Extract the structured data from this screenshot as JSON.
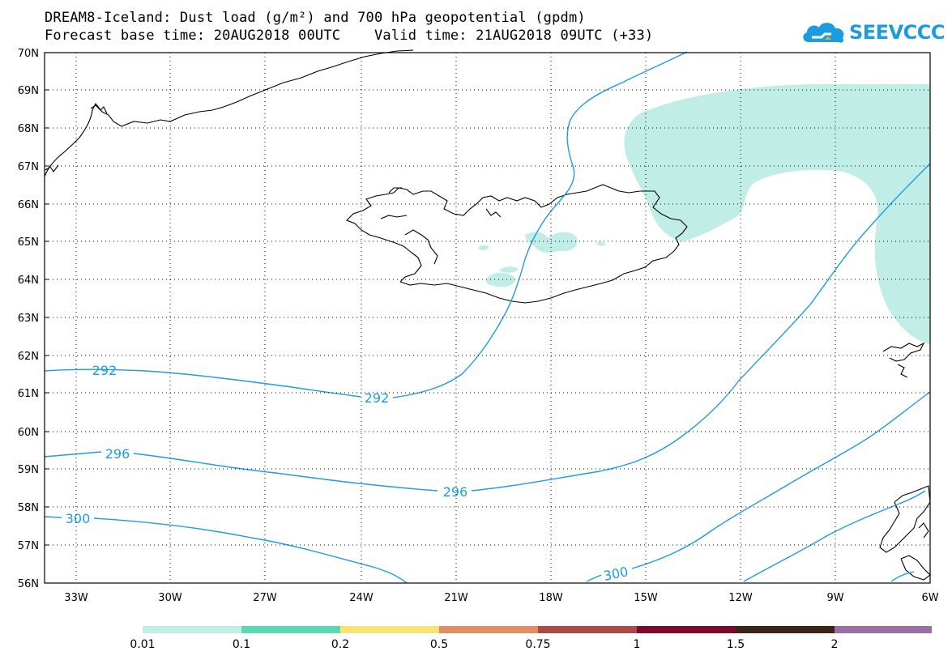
{
  "title": {
    "line1": "DREAM8-Iceland: Dust load (g/m²) and 700 hPa geopotential (gpdm)",
    "line2": "Forecast base time: 20AUG2018 00UTC    Valid time: 21AUG2018 09UTC (+33)"
  },
  "logo": {
    "text": "SEEVCCC",
    "icon": "cloud-icon",
    "color": "#1d9be0"
  },
  "map": {
    "lon_range": [
      -34,
      -6
    ],
    "lat_range": [
      56,
      70
    ],
    "lat_labels": [
      "70N",
      "69N",
      "68N",
      "67N",
      "66N",
      "65N",
      "64N",
      "63N",
      "62N",
      "61N",
      "60N",
      "59N",
      "58N",
      "57N",
      "56N"
    ],
    "lon_labels": [
      "33W",
      "30W",
      "27W",
      "24W",
      "21W",
      "18W",
      "15W",
      "12W",
      "9W",
      "6W"
    ],
    "grid": "dotted",
    "dust_color": "#c0eee6",
    "contour_color": "#1e9be6",
    "contour_labels": [
      "292",
      "292",
      "296",
      "296",
      "300",
      "300"
    ]
  },
  "legend": {
    "labels": [
      "0.01",
      "0.1",
      "0.2",
      "0.5",
      "0.75",
      "1",
      "1.5",
      "2"
    ],
    "colors": [
      "#c1efe6",
      "#5ad9b0",
      "#f7e473",
      "#e48c66",
      "#a84b46",
      "#7c0a2a",
      "#3a2418",
      "#9a6fa3"
    ]
  }
}
